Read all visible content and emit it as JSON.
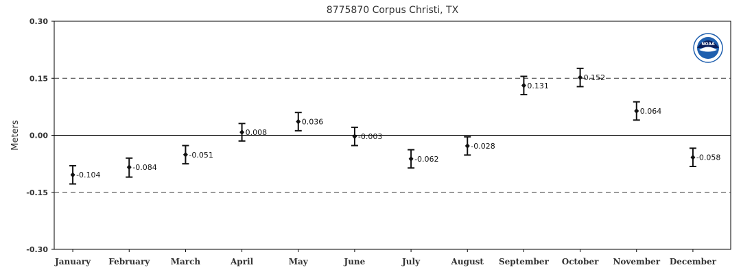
{
  "chart_data": {
    "type": "scatter",
    "title": "8775870 Corpus Christi, TX",
    "xlabel": "",
    "ylabel": "Meters",
    "ylim": [
      -0.3,
      0.3
    ],
    "yticks": [
      "0.30",
      "0.15",
      "0.00",
      "-0.15",
      "-0.30"
    ],
    "ytick_values": [
      0.3,
      0.15,
      0.0,
      -0.15,
      -0.3
    ],
    "grid": "dashed lines at ±0.15, solid zero line",
    "categories": [
      "January",
      "February",
      "March",
      "April",
      "May",
      "June",
      "July",
      "August",
      "September",
      "October",
      "November",
      "December"
    ],
    "values": [
      -0.104,
      -0.084,
      -0.051,
      0.008,
      0.036,
      -0.003,
      -0.062,
      -0.028,
      0.131,
      0.152,
      0.064,
      -0.058
    ],
    "value_labels": [
      "-0.104",
      "-0.084",
      "-0.051",
      "0.008",
      "0.036",
      "-0.003",
      "-0.062",
      "-0.028",
      "0.131",
      "0.152",
      "0.064",
      "-0.058"
    ],
    "error_low": [
      -0.128,
      -0.11,
      -0.075,
      -0.015,
      0.012,
      -0.027,
      -0.086,
      -0.052,
      0.107,
      0.128,
      0.04,
      -0.082
    ],
    "error_high": [
      -0.08,
      -0.06,
      -0.027,
      0.031,
      0.06,
      0.021,
      -0.038,
      -0.004,
      0.155,
      0.176,
      0.088,
      -0.034
    ],
    "colors": {
      "marker": "#111111",
      "axis": "#000000",
      "grid": "#333333",
      "logo_blue": "#1f5fae",
      "logo_navy": "#0b1f5c"
    }
  },
  "logo": {
    "text": "NOAA",
    "icon": "noaa-logo-icon"
  }
}
